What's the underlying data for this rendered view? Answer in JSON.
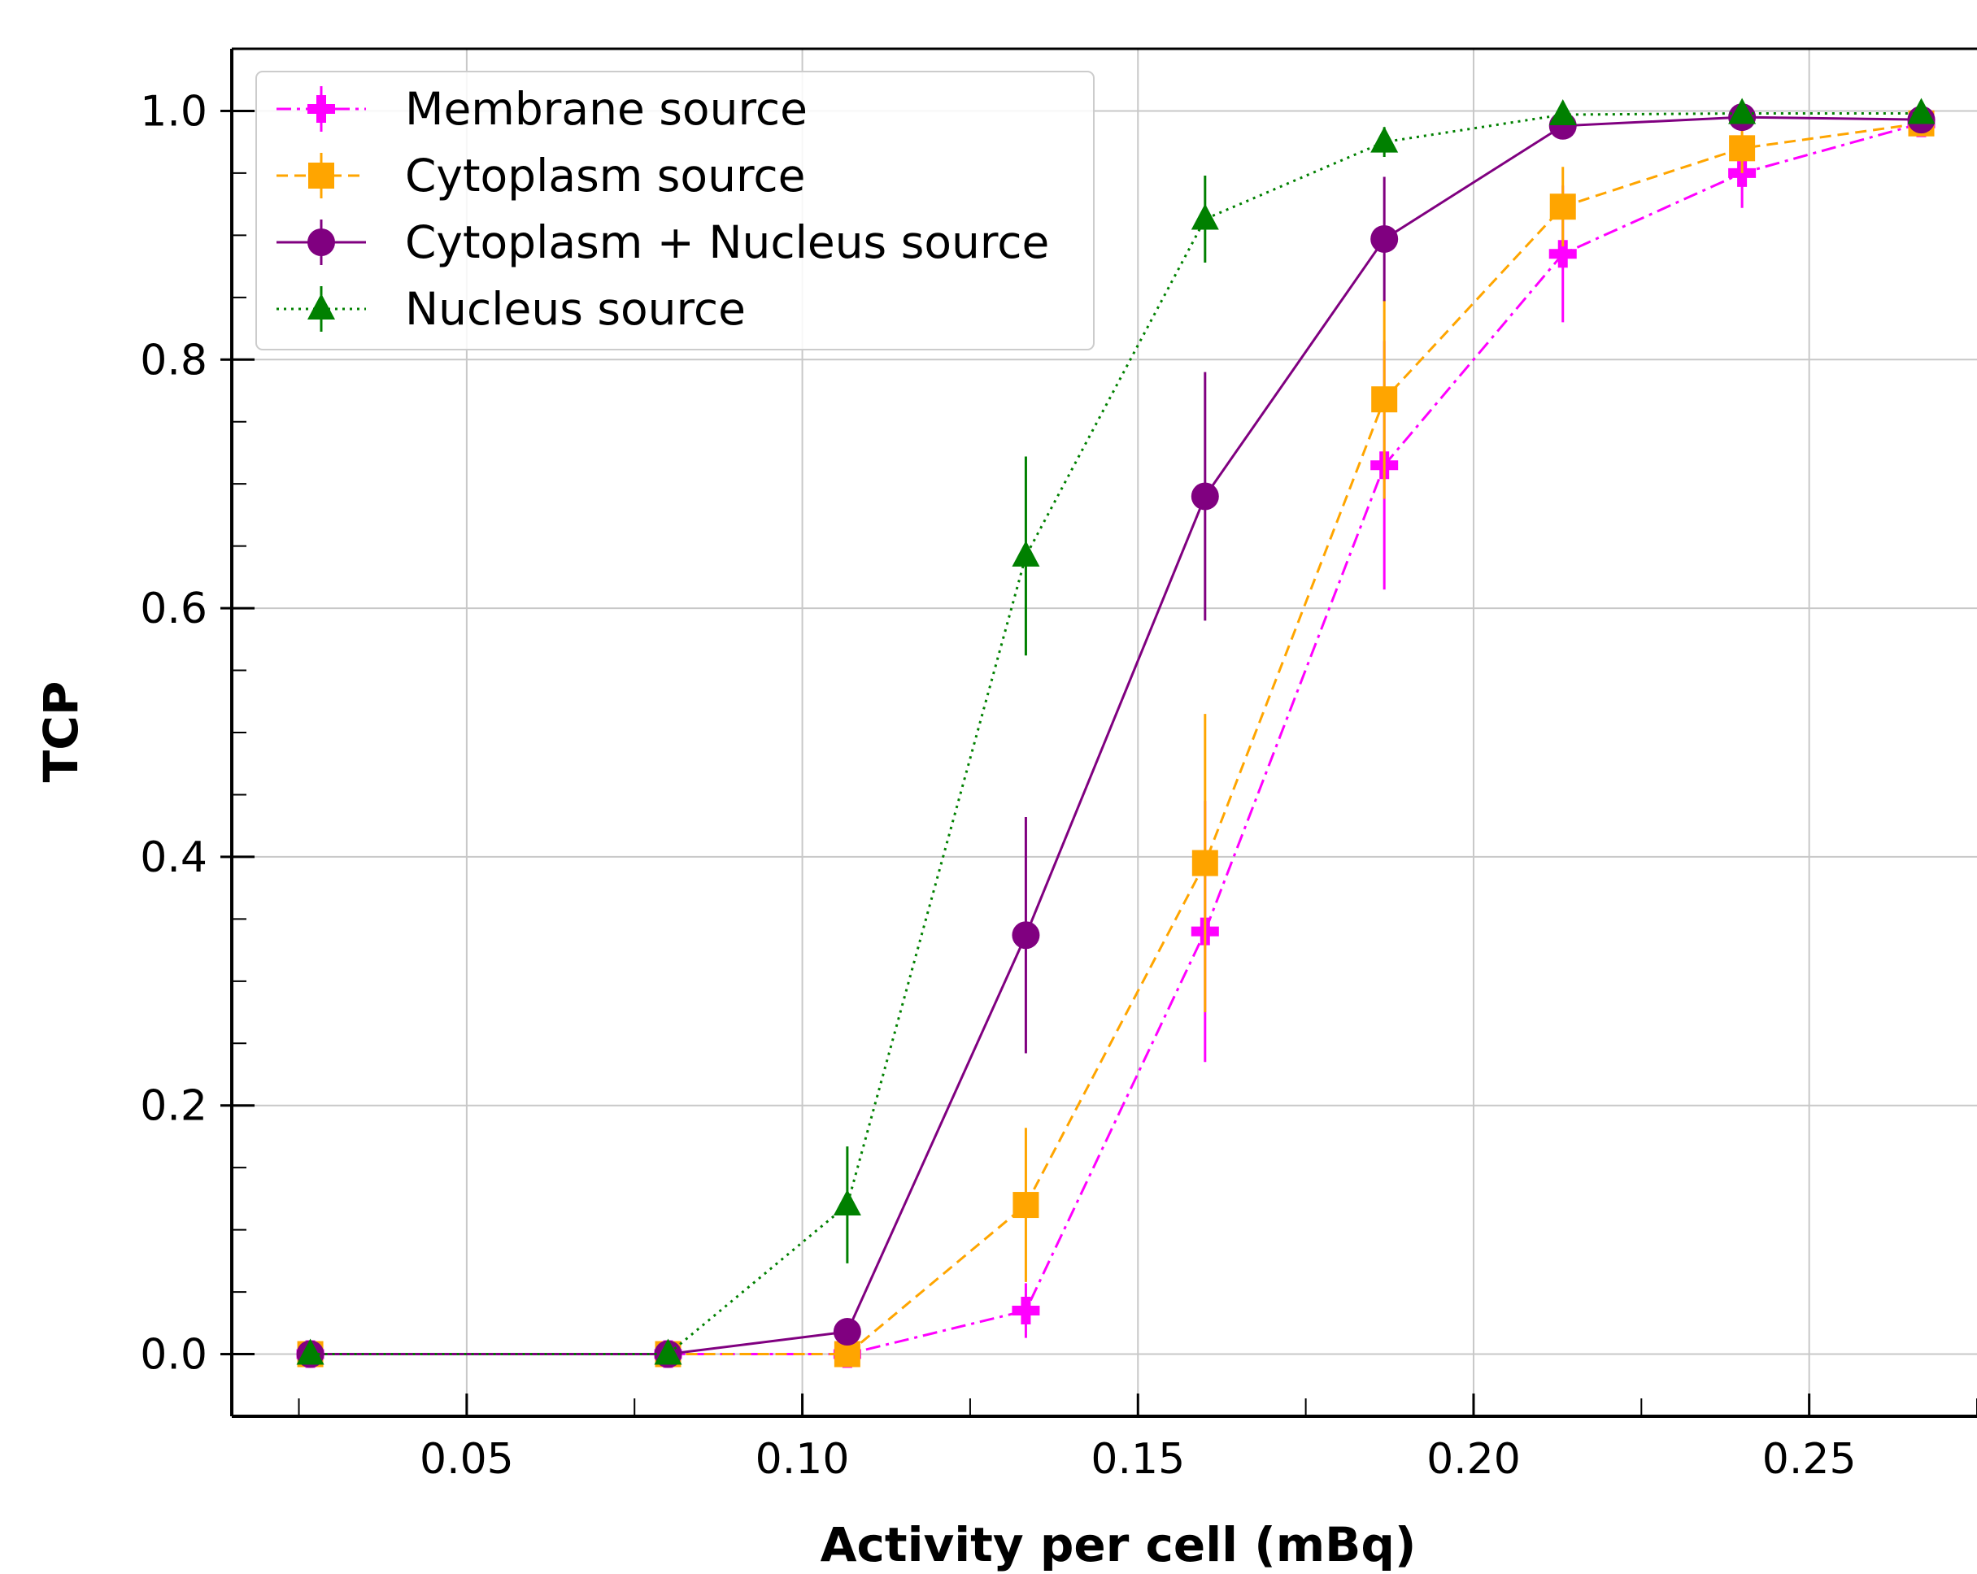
{
  "chart_data": {
    "type": "line",
    "xlabel": "Activity per cell (mBq)",
    "ylabel": "TCP",
    "xlim": [
      0.015,
      0.275
    ],
    "ylim": [
      -0.05,
      1.05
    ],
    "x_ticks": [
      0.05,
      0.1,
      0.15,
      0.2,
      0.25
    ],
    "x_tick_labels": [
      "0.05",
      "0.10",
      "0.15",
      "0.20",
      "0.25"
    ],
    "y_ticks": [
      0.0,
      0.2,
      0.4,
      0.6,
      0.8,
      1.0
    ],
    "y_tick_labels": [
      "0.0",
      "0.2",
      "0.4",
      "0.6",
      "0.8",
      "1.0"
    ],
    "grid": true,
    "legend_position": "top-left",
    "x": [
      0.0267,
      0.08,
      0.1067,
      0.1333,
      0.16,
      0.1867,
      0.2133,
      0.24,
      0.2667
    ],
    "series": [
      {
        "name": "Membrane source",
        "color": "#ff00ff",
        "marker": "plus",
        "linestyle": "dashdot",
        "values": [
          0.0,
          0.0,
          0.0,
          0.035,
          0.34,
          0.715,
          0.885,
          0.95,
          0.99
        ],
        "errors": [
          0.0,
          0.0,
          0.0,
          0.022,
          0.105,
          0.1,
          0.055,
          0.028,
          0.008
        ]
      },
      {
        "name": "Cytoplasm source",
        "color": "#ffa500",
        "marker": "square",
        "linestyle": "dashed",
        "values": [
          0.0,
          0.0,
          0.0,
          0.12,
          0.395,
          0.768,
          0.923,
          0.97,
          0.99
        ],
        "errors": [
          0.0,
          0.0,
          0.0,
          0.062,
          0.12,
          0.08,
          0.032,
          0.02,
          0.008
        ]
      },
      {
        "name": "Cytoplasm + Nucleus source",
        "color": "#800080",
        "marker": "circle",
        "linestyle": "solid",
        "values": [
          0.0,
          0.0,
          0.018,
          0.337,
          0.69,
          0.897,
          0.988,
          0.995,
          0.993
        ],
        "errors": [
          0.0,
          0.0,
          0.0,
          0.095,
          0.1,
          0.05,
          0.01,
          0.006,
          0.006
        ]
      },
      {
        "name": "Nucleus source",
        "color": "#008000",
        "marker": "triangle",
        "linestyle": "dotted",
        "values": [
          0.0,
          0.0,
          0.12,
          0.642,
          0.913,
          0.975,
          0.997,
          0.998,
          0.998
        ],
        "errors": [
          0.0,
          0.0,
          0.047,
          0.08,
          0.035,
          0.012,
          0.004,
          0.003,
          0.003
        ]
      }
    ]
  }
}
